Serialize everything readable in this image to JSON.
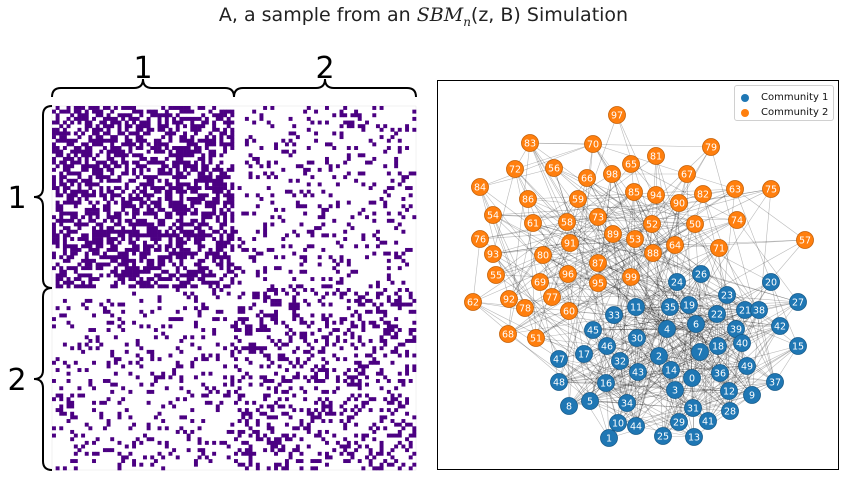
{
  "figure": {
    "title_prefix": "A, a sample from an ",
    "title_math": "SBM",
    "title_sub": "n",
    "title_math_args": "(z, B)",
    "title_suffix": " Simulation"
  },
  "matrix": {
    "block_labels": [
      "1",
      "2"
    ],
    "fill_color": "#4b0082",
    "n_nodes": 100,
    "block_sizes": [
      50,
      50
    ],
    "block_probabilities": [
      [
        0.55,
        0.15
      ],
      [
        0.15,
        0.3
      ]
    ]
  },
  "graph": {
    "legend": [
      {
        "label": "Community 1",
        "color": "#1f77b4"
      },
      {
        "label": "Community 2",
        "color": "#ff7f0e"
      }
    ],
    "node_labels": [
      "0",
      "1",
      "2",
      "3",
      "4",
      "5",
      "6",
      "7",
      "8",
      "9",
      "10",
      "11",
      "12",
      "13",
      "14",
      "15",
      "16",
      "17",
      "18",
      "19",
      "20",
      "21",
      "22",
      "23",
      "24",
      "25",
      "26",
      "27",
      "28",
      "29",
      "30",
      "31",
      "32",
      "33",
      "34",
      "35",
      "36",
      "37",
      "38",
      "39",
      "40",
      "41",
      "42",
      "43",
      "44",
      "45",
      "46",
      "47",
      "48",
      "49",
      "50",
      "51",
      "52",
      "53",
      "54",
      "55",
      "56",
      "57",
      "58",
      "59",
      "60",
      "61",
      "62",
      "63",
      "64",
      "65",
      "66",
      "67",
      "68",
      "69",
      "70",
      "71",
      "72",
      "73",
      "74",
      "75",
      "76",
      "77",
      "78",
      "79",
      "80",
      "81",
      "82",
      "83",
      "84",
      "85",
      "86",
      "87",
      "88",
      "89",
      "90",
      "91",
      "92",
      "93",
      "94",
      "95",
      "96",
      "97",
      "98",
      "99"
    ],
    "communities": [
      1,
      1,
      1,
      1,
      1,
      1,
      1,
      1,
      1,
      1,
      1,
      1,
      1,
      1,
      1,
      1,
      1,
      1,
      1,
      1,
      1,
      1,
      1,
      1,
      1,
      1,
      1,
      1,
      1,
      1,
      1,
      1,
      1,
      1,
      1,
      1,
      1,
      1,
      1,
      1,
      1,
      1,
      1,
      1,
      1,
      1,
      1,
      1,
      1,
      1,
      2,
      2,
      2,
      2,
      2,
      2,
      2,
      2,
      2,
      2,
      2,
      2,
      2,
      2,
      2,
      2,
      2,
      2,
      2,
      2,
      2,
      2,
      2,
      2,
      2,
      2,
      2,
      2,
      2,
      2,
      2,
      2,
      2,
      2,
      2,
      2,
      2,
      2,
      2,
      2,
      2,
      2,
      2,
      2,
      2,
      2,
      2,
      2,
      2,
      2
    ]
  }
}
